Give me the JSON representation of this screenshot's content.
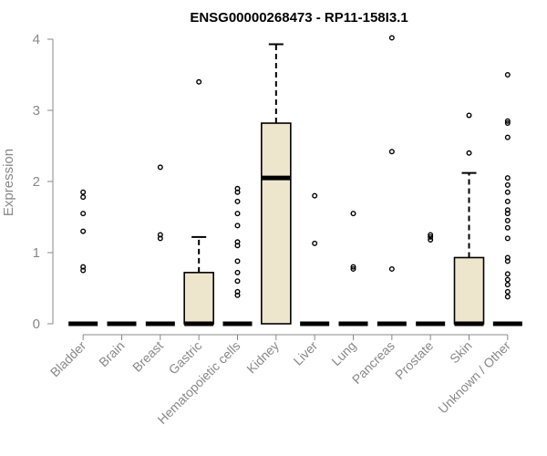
{
  "chart_data": {
    "type": "box",
    "title": "ENSG00000268473 - RP11-158I3.1",
    "xlabel": "",
    "ylabel": "Expression",
    "ylim": [
      0,
      4
    ],
    "yticks": [
      "0",
      "1",
      "2",
      "3",
      "4"
    ],
    "categories": [
      "Bladder",
      "Brain",
      "Breast",
      "Gastric",
      "Hematopoietic cells",
      "Kidney",
      "Liver",
      "Lung",
      "Pancreas",
      "Prostate",
      "Skin",
      "Unknown / Other"
    ],
    "box_fill": "#ede6cd",
    "boxes": [
      {
        "category": "Bladder",
        "q1": 0,
        "median": 0,
        "q3": 0,
        "whisker_low": 0,
        "whisker_high": 0,
        "outliers": [
          0.75,
          0.8,
          1.3,
          1.55,
          1.78,
          1.85
        ]
      },
      {
        "category": "Brain",
        "q1": 0,
        "median": 0,
        "q3": 0,
        "whisker_low": 0,
        "whisker_high": 0,
        "outliers": []
      },
      {
        "category": "Breast",
        "q1": 0,
        "median": 0,
        "q3": 0,
        "whisker_low": 0,
        "whisker_high": 0,
        "outliers": [
          1.2,
          1.25,
          2.2
        ]
      },
      {
        "category": "Gastric",
        "q1": 0,
        "median": 0,
        "q3": 0.72,
        "whisker_low": 0,
        "whisker_high": 1.22,
        "outliers": [
          3.4
        ]
      },
      {
        "category": "Hematopoietic cells",
        "q1": 0,
        "median": 0,
        "q3": 0,
        "whisker_low": 0,
        "whisker_high": 0,
        "outliers": [
          0.4,
          0.45,
          0.6,
          0.72,
          0.88,
          1.1,
          1.15,
          1.38,
          1.55,
          1.72,
          1.85,
          1.9
        ]
      },
      {
        "category": "Kidney",
        "q1": 0,
        "median": 2.05,
        "q3": 2.82,
        "whisker_low": 0,
        "whisker_high": 3.93,
        "outliers": []
      },
      {
        "category": "Liver",
        "q1": 0,
        "median": 0,
        "q3": 0,
        "whisker_low": 0,
        "whisker_high": 0,
        "outliers": [
          1.13,
          1.8
        ]
      },
      {
        "category": "Lung",
        "q1": 0,
        "median": 0,
        "q3": 0,
        "whisker_low": 0,
        "whisker_high": 0,
        "outliers": [
          0.77,
          0.8,
          1.55
        ]
      },
      {
        "category": "Pancreas",
        "q1": 0,
        "median": 0,
        "q3": 0,
        "whisker_low": 0,
        "whisker_high": 0,
        "outliers": [
          0.77,
          2.42,
          4.02
        ]
      },
      {
        "category": "Prostate",
        "q1": 0,
        "median": 0,
        "q3": 0,
        "whisker_low": 0,
        "whisker_high": 0,
        "outliers": [
          1.18,
          1.22,
          1.25
        ]
      },
      {
        "category": "Skin",
        "q1": 0,
        "median": 0,
        "q3": 0.93,
        "whisker_low": 0,
        "whisker_high": 2.12,
        "outliers": [
          2.4,
          2.93
        ]
      },
      {
        "category": "Unknown / Other",
        "q1": 0,
        "median": 0,
        "q3": 0,
        "whisker_low": 0,
        "whisker_high": 0,
        "outliers": [
          0.38,
          0.45,
          0.55,
          0.62,
          0.7,
          0.88,
          0.93,
          1.2,
          1.35,
          1.45,
          1.55,
          1.6,
          1.72,
          1.85,
          1.95,
          2.05,
          2.62,
          2.82,
          2.85,
          3.5
        ]
      }
    ]
  }
}
